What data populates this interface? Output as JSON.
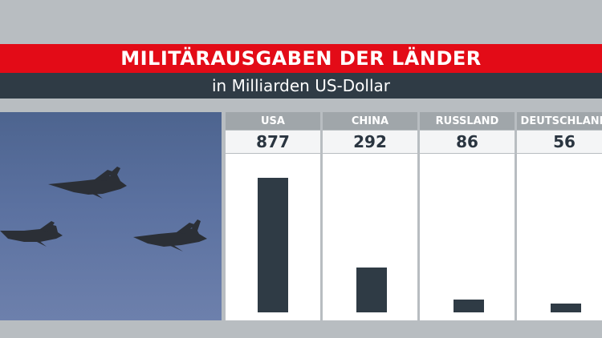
{
  "header": {
    "title": "MILITÄRAUSGABEN DER LÄNDER",
    "subtitle": "in Milliarden US-Dollar"
  },
  "photo": {
    "icon": "fighter-jets-photo"
  },
  "colors": {
    "title_band": "#e30b17",
    "subtitle_band": "#2f3b45",
    "bar": "#2f3b45",
    "column_header": "#a0a6aa"
  },
  "chart_data": {
    "type": "bar",
    "title": "MILITÄRAUSGABEN DER LÄNDER",
    "subtitle": "in Milliarden US-Dollar",
    "categories": [
      "USA",
      "CHINA",
      "RUSSLAND",
      "DEUTSCHLAND"
    ],
    "values": [
      877,
      292,
      86,
      56
    ],
    "value_labels": [
      "877",
      "292",
      "86",
      "56"
    ],
    "ylim": [
      0,
      877
    ],
    "grid": false
  }
}
